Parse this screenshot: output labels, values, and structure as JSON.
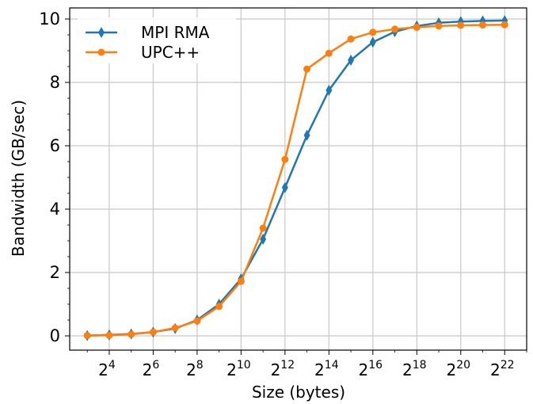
{
  "chart_data": {
    "type": "line",
    "xlabel": "Size (bytes)",
    "ylabel": "Bandwidth (GB/sec)",
    "x_scale": "log2",
    "x_exponents": [
      3,
      4,
      5,
      6,
      7,
      8,
      9,
      10,
      11,
      12,
      13,
      14,
      15,
      16,
      17,
      18,
      19,
      20,
      21,
      22
    ],
    "xticks": [
      {
        "base": "2",
        "exp": "4",
        "exponent": 4
      },
      {
        "base": "2",
        "exp": "6",
        "exponent": 6
      },
      {
        "base": "2",
        "exp": "8",
        "exponent": 8
      },
      {
        "base": "2",
        "exp": "10",
        "exponent": 10
      },
      {
        "base": "2",
        "exp": "12",
        "exponent": 12
      },
      {
        "base": "2",
        "exp": "14",
        "exponent": 14
      },
      {
        "base": "2",
        "exp": "16",
        "exponent": 16
      },
      {
        "base": "2",
        "exp": "18",
        "exponent": 18
      },
      {
        "base": "2",
        "exp": "20",
        "exponent": 20
      },
      {
        "base": "2",
        "exp": "22",
        "exponent": 22
      }
    ],
    "yticks": [
      {
        "value": 0,
        "label": "0"
      },
      {
        "value": 2,
        "label": "2"
      },
      {
        "value": 4,
        "label": "4"
      },
      {
        "value": 6,
        "label": "6"
      },
      {
        "value": 8,
        "label": "8"
      },
      {
        "value": 10,
        "label": "10"
      }
    ],
    "xlim": [
      2.2,
      23.0
    ],
    "ylim": [
      -0.45,
      10.35
    ],
    "grid": true,
    "legend_position": "top-left",
    "series": [
      {
        "name": "MPI RMA",
        "color": "#1f77b4",
        "marker": "diamond",
        "values": [
          0.01,
          0.03,
          0.06,
          0.12,
          0.23,
          0.5,
          1.0,
          1.8,
          3.05,
          4.68,
          6.33,
          7.75,
          8.7,
          9.27,
          9.6,
          9.78,
          9.88,
          9.92,
          9.94,
          9.95
        ]
      },
      {
        "name": "UPC++",
        "color": "#ff7f0e",
        "marker": "circle",
        "values": [
          0.01,
          0.02,
          0.05,
          0.12,
          0.25,
          0.47,
          0.93,
          1.72,
          3.4,
          5.57,
          8.42,
          8.92,
          9.37,
          9.58,
          9.68,
          9.74,
          9.78,
          9.8,
          9.81,
          9.82
        ]
      }
    ]
  }
}
